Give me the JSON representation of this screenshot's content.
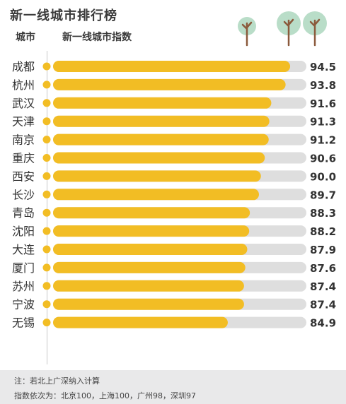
{
  "header": {
    "title": "新一线城市排行榜",
    "col_city": "城市",
    "col_index": "新一线城市指数"
  },
  "notes": {
    "line1": "注：若北上广深纳入计算",
    "line2": "指数依次为：北京100，上海100，广州98，深圳97"
  },
  "colors": {
    "bar": "#f2bd24",
    "track": "#dedede",
    "dot": "#f2bd24",
    "axis": "#c9c9c9",
    "tree_crown": "#b9ddc8",
    "tree_trunk": "#8b5a3c"
  },
  "decorations": [
    "tree-icon",
    "tree-icon",
    "tree-icon"
  ],
  "chart_data": {
    "type": "bar",
    "orientation": "horizontal",
    "title": "新一线城市排行榜",
    "xlabel": "新一线城市指数",
    "ylabel": "城市",
    "xlim": [
      0,
      100
    ],
    "categories": [
      "成都",
      "杭州",
      "武汉",
      "天津",
      "南京",
      "重庆",
      "西安",
      "长沙",
      "青岛",
      "沈阳",
      "大连",
      "厦门",
      "苏州",
      "宁波",
      "无锡"
    ],
    "values": [
      94.5,
      93.8,
      91.6,
      91.3,
      91.2,
      90.6,
      90.0,
      89.7,
      88.3,
      88.2,
      87.9,
      87.6,
      87.4,
      87.4,
      84.9
    ],
    "value_labels": [
      "94.5",
      "93.8",
      "91.6",
      "91.3",
      "91.2",
      "90.6",
      "90.0",
      "89.7",
      "88.3",
      "88.2",
      "87.9",
      "87.6",
      "87.4",
      "87.4",
      "84.9"
    ],
    "grid": false,
    "legend": "none"
  }
}
